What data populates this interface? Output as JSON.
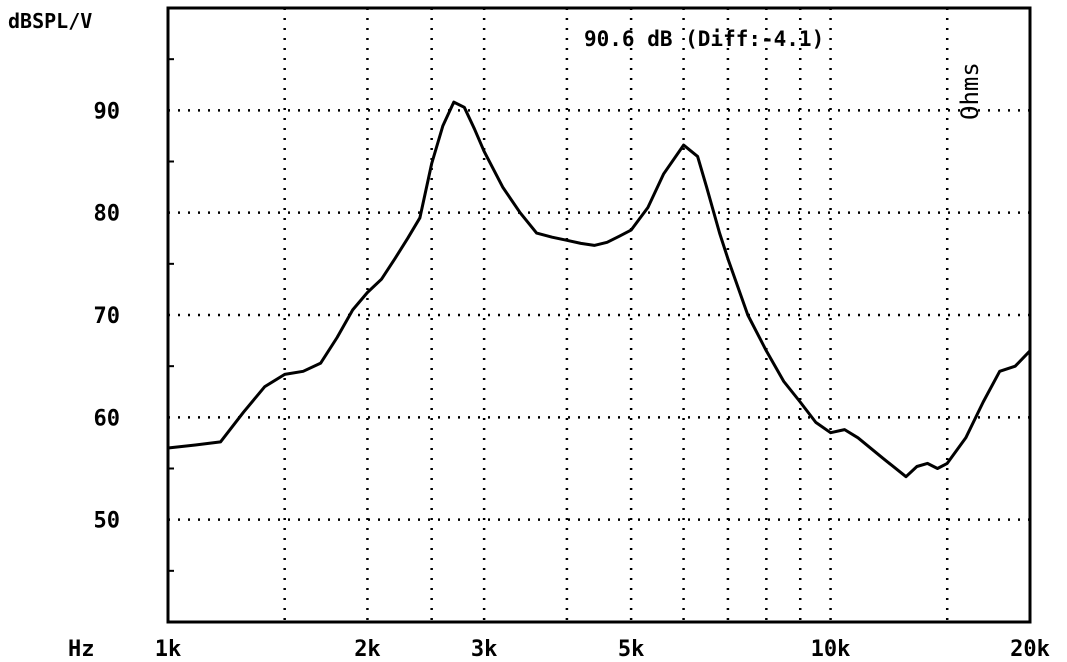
{
  "chart_data": {
    "type": "line",
    "ylabel": "dBSPL/V",
    "xlabel": "Hz",
    "annotation": "90.6 dB (Diff:-4.1)",
    "side_label": "Ohms",
    "x_scale": "log",
    "xlim": [
      1000,
      20000
    ],
    "ylim": [
      40,
      100
    ],
    "grid": true,
    "x_ticks": [
      {
        "value": 1000,
        "label": "1k"
      },
      {
        "value": 2000,
        "label": "2k"
      },
      {
        "value": 3000,
        "label": "3k"
      },
      {
        "value": 5000,
        "label": "5k"
      },
      {
        "value": 10000,
        "label": "10k"
      },
      {
        "value": 20000,
        "label": "20k"
      }
    ],
    "x_grid": [
      1000,
      1500,
      2000,
      2500,
      3000,
      4000,
      5000,
      6000,
      7000,
      8000,
      9000,
      10000,
      15000,
      20000
    ],
    "y_ticks": [
      {
        "value": 50,
        "label": "50"
      },
      {
        "value": 60,
        "label": "60"
      },
      {
        "value": 70,
        "label": "70"
      },
      {
        "value": 80,
        "label": "80"
      },
      {
        "value": 90,
        "label": "90"
      }
    ],
    "series": [
      {
        "name": "",
        "x": [
          1000,
          1100,
          1200,
          1300,
          1400,
          1500,
          1600,
          1700,
          1800,
          1900,
          2000,
          2100,
          2200,
          2300,
          2400,
          2500,
          2600,
          2700,
          2800,
          2900,
          3000,
          3200,
          3400,
          3600,
          3800,
          4000,
          4200,
          4400,
          4600,
          4800,
          5000,
          5300,
          5600,
          6000,
          6300,
          6500,
          6800,
          7000,
          7500,
          8000,
          8500,
          9000,
          9500,
          10000,
          10500,
          11000,
          12000,
          13000,
          13500,
          14000,
          14500,
          15000,
          16000,
          17000,
          18000,
          19000,
          20000
        ],
        "y": [
          57.0,
          57.3,
          57.6,
          60.5,
          63.0,
          64.2,
          64.5,
          65.3,
          67.8,
          70.5,
          72.2,
          73.5,
          75.5,
          77.5,
          79.5,
          84.8,
          88.5,
          90.8,
          90.3,
          88.2,
          86.0,
          82.5,
          80.0,
          78.0,
          77.6,
          77.3,
          77.0,
          76.8,
          77.1,
          77.7,
          78.3,
          80.5,
          83.8,
          86.6,
          85.5,
          82.5,
          78.0,
          75.5,
          70.0,
          66.5,
          63.5,
          61.5,
          59.5,
          58.5,
          58.8,
          58.0,
          56.0,
          54.2,
          55.2,
          55.5,
          55.0,
          55.5,
          58.0,
          61.5,
          64.5,
          65.0,
          66.5
        ]
      }
    ]
  }
}
